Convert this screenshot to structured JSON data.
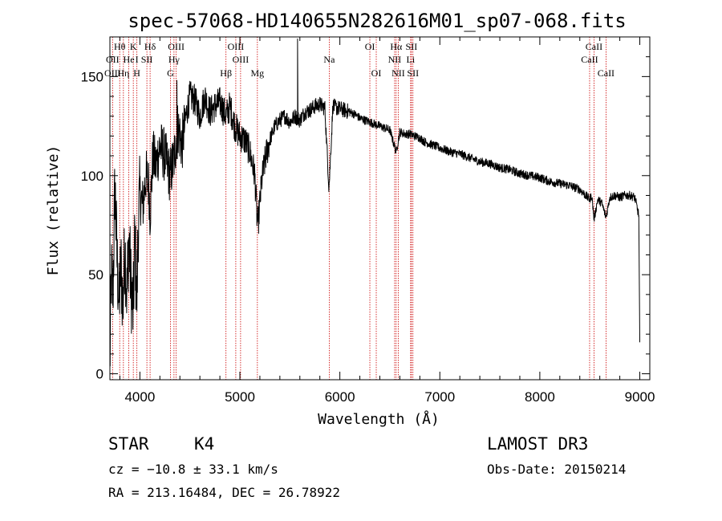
{
  "chart_data": {
    "type": "line",
    "title": "spec-57068-HD140655N282616M01_sp07-068.fits",
    "xlabel": "Wavelength (Å)",
    "ylabel": "Flux (relative)",
    "xlim": [
      3700,
      9100
    ],
    "ylim": [
      -3,
      170
    ],
    "xticks": [
      4000,
      5000,
      6000,
      7000,
      8000,
      9000
    ],
    "yticks": [
      0,
      50,
      100,
      150
    ],
    "series": [
      {
        "name": "spectrum",
        "anchors": [
          [
            3700,
            5
          ],
          [
            3715,
            50
          ],
          [
            3730,
            40
          ],
          [
            3750,
            95
          ],
          [
            3770,
            60
          ],
          [
            3790,
            35
          ],
          [
            3810,
            55
          ],
          [
            3830,
            35
          ],
          [
            3850,
            65
          ],
          [
            3870,
            40
          ],
          [
            3890,
            70
          ],
          [
            3910,
            45
          ],
          [
            3933,
            30
          ],
          [
            3950,
            70
          ],
          [
            3968,
            35
          ],
          [
            3985,
            78
          ],
          [
            4000,
            90
          ],
          [
            4030,
            85
          ],
          [
            4060,
            100
          ],
          [
            4090,
            95
          ],
          [
            4101,
            80
          ],
          [
            4130,
            110
          ],
          [
            4160,
            105
          ],
          [
            4200,
            115
          ],
          [
            4250,
            110
          ],
          [
            4300,
            100
          ],
          [
            4340,
            108
          ],
          [
            4380,
            125
          ],
          [
            4420,
            115
          ],
          [
            4460,
            130
          ],
          [
            4500,
            140
          ],
          [
            4550,
            138
          ],
          [
            4600,
            130
          ],
          [
            4650,
            140
          ],
          [
            4700,
            132
          ],
          [
            4750,
            135
          ],
          [
            4800,
            137
          ],
          [
            4861,
            130
          ],
          [
            4900,
            135
          ],
          [
            4950,
            125
          ],
          [
            5000,
            120
          ],
          [
            5050,
            118
          ],
          [
            5100,
            112
          ],
          [
            5150,
            100
          ],
          [
            5172,
            78
          ],
          [
            5183,
            76
          ],
          [
            5220,
            98
          ],
          [
            5260,
            110
          ],
          [
            5300,
            118
          ],
          [
            5350,
            125
          ],
          [
            5400,
            128
          ],
          [
            5450,
            130
          ],
          [
            5500,
            127
          ],
          [
            5550,
            130
          ],
          [
            5600,
            128
          ],
          [
            5650,
            132
          ],
          [
            5700,
            133
          ],
          [
            5750,
            135
          ],
          [
            5800,
            136
          ],
          [
            5850,
            134
          ],
          [
            5890,
            95
          ],
          [
            5896,
            98
          ],
          [
            5930,
            135
          ],
          [
            5980,
            134
          ],
          [
            6050,
            133
          ],
          [
            6100,
            132
          ],
          [
            6150,
            131
          ],
          [
            6200,
            129
          ],
          [
            6250,
            128
          ],
          [
            6300,
            127
          ],
          [
            6350,
            126
          ],
          [
            6400,
            125
          ],
          [
            6450,
            124
          ],
          [
            6500,
            123
          ],
          [
            6563,
            112
          ],
          [
            6600,
            122
          ],
          [
            6650,
            121
          ],
          [
            6700,
            121
          ],
          [
            6750,
            120
          ],
          [
            6800,
            119
          ],
          [
            6850,
            117
          ],
          [
            6900,
            116
          ],
          [
            6950,
            115
          ],
          [
            7000,
            114
          ],
          [
            7100,
            112
          ],
          [
            7200,
            111
          ],
          [
            7300,
            109
          ],
          [
            7400,
            107
          ],
          [
            7500,
            106
          ],
          [
            7600,
            104
          ],
          [
            7700,
            103
          ],
          [
            7800,
            101
          ],
          [
            7900,
            100
          ],
          [
            8000,
            99
          ],
          [
            8100,
            97
          ],
          [
            8200,
            96
          ],
          [
            8300,
            95
          ],
          [
            8400,
            93
          ],
          [
            8498,
            88
          ],
          [
            8520,
            90
          ],
          [
            8542,
            78
          ],
          [
            8580,
            88
          ],
          [
            8620,
            86
          ],
          [
            8662,
            79
          ],
          [
            8700,
            89
          ],
          [
            8750,
            90
          ],
          [
            8800,
            89
          ],
          [
            8850,
            90
          ],
          [
            8900,
            90
          ],
          [
            8950,
            89
          ],
          [
            8990,
            80
          ],
          [
            9000,
            15
          ]
        ],
        "spikes": [
          {
            "x": 5577,
            "y": 169
          },
          {
            "x": 4370,
            "y": 148
          }
        ]
      }
    ],
    "spectral_lines": [
      {
        "label": "Hθ",
        "x": 3798,
        "row": 1
      },
      {
        "label": "OII",
        "x": 3727,
        "row": 2
      },
      {
        "label": "OIII",
        "x": 3727,
        "row": 3
      },
      {
        "label": "He",
        "x": 3889,
        "row": 2
      },
      {
        "label": "Hη",
        "x": 3835,
        "row": 3
      },
      {
        "label": "K",
        "x": 3934,
        "row": 1
      },
      {
        "label": "I",
        "x": 3970,
        "row": 2
      },
      {
        "label": "H",
        "x": 3969,
        "row": 3
      },
      {
        "label": "Hδ",
        "x": 4102,
        "row": 1
      },
      {
        "label": "SII",
        "x": 4070,
        "row": 2
      },
      {
        "label": "OIII",
        "x": 4363,
        "row": 1
      },
      {
        "label": "Hγ",
        "x": 4341,
        "row": 2
      },
      {
        "label": "G",
        "x": 4305,
        "row": 3
      },
      {
        "label": "Hβ",
        "x": 4861,
        "row": 3
      },
      {
        "label": "OIII",
        "x": 4959,
        "row": 1
      },
      {
        "label": "OIII",
        "x": 5007,
        "row": 2
      },
      {
        "label": "Mg",
        "x": 5175,
        "row": 3
      },
      {
        "label": "Na",
        "x": 5894,
        "row": 2
      },
      {
        "label": "OI",
        "x": 6300,
        "row": 1
      },
      {
        "label": "OI",
        "x": 6364,
        "row": 3
      },
      {
        "label": "Hα",
        "x": 6563,
        "row": 1
      },
      {
        "label": "NII",
        "x": 6548,
        "row": 2
      },
      {
        "label": "NII",
        "x": 6584,
        "row": 3
      },
      {
        "label": "SII",
        "x": 6716,
        "row": 1
      },
      {
        "label": "Li",
        "x": 6708,
        "row": 2
      },
      {
        "label": "SII",
        "x": 6731,
        "row": 3
      },
      {
        "label": "CaII",
        "x": 8542,
        "row": 1
      },
      {
        "label": "CaII",
        "x": 8498,
        "row": 2
      },
      {
        "label": "CaII",
        "x": 8662,
        "row": 3
      }
    ]
  },
  "info": {
    "class_label": "STAR",
    "subclass": "K4",
    "survey": "LAMOST DR3",
    "cz": "cz = −10.8 ± 33.1 km/s",
    "obs_date": "Obs-Date: 20150214",
    "coords": "RA = 213.16484, DEC =  26.78922"
  },
  "colors": {
    "spectrum": "#000000",
    "line_marker": "#cc0000",
    "axis": "#000000"
  }
}
